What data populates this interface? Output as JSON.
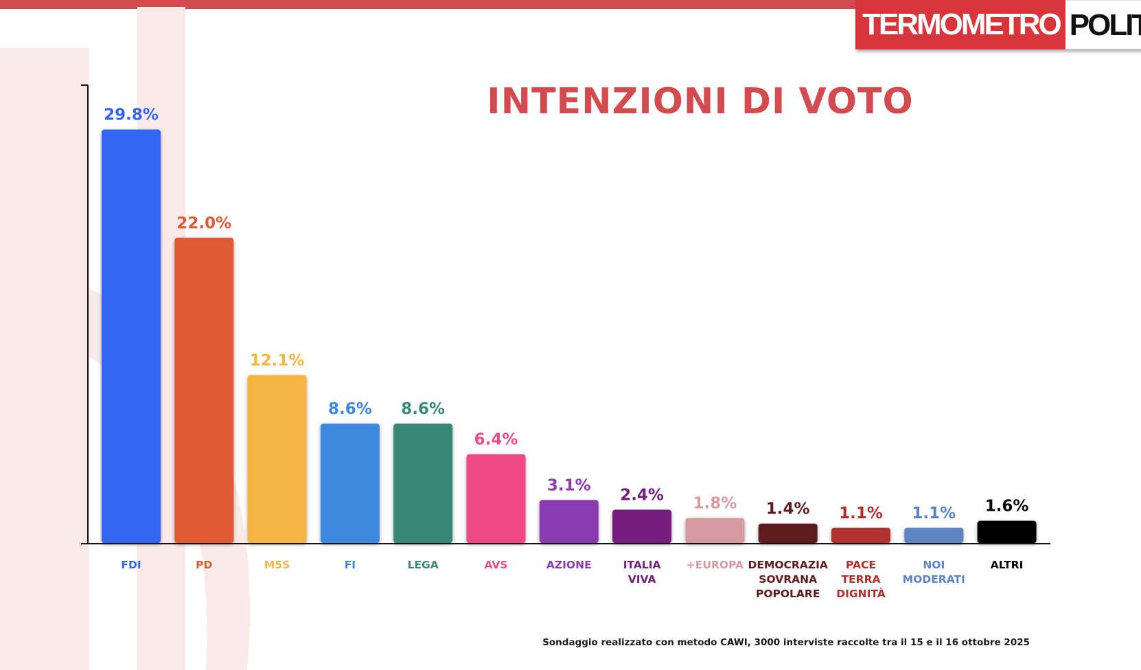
{
  "logo": {
    "part1": "TERMOMETRO",
    "part2": "POLITICO",
    "color": "#d8353b"
  },
  "chart_data": {
    "type": "bar",
    "title": "INTENZIONI DI VOTO",
    "title_color": "#d44b4f",
    "xlabel": "",
    "ylabel": "",
    "ylim": [
      0,
      33
    ],
    "grid": false,
    "categories": [
      [
        "FDI"
      ],
      [
        "PD"
      ],
      [
        "M5S"
      ],
      [
        "FI"
      ],
      [
        "LEGA"
      ],
      [
        "AVS"
      ],
      [
        "AZIONE"
      ],
      [
        "ITALIA",
        "VIVA"
      ],
      [
        "+EUROPA"
      ],
      [
        "DEMOCRAZIA",
        "SOVRANA",
        "POPOLARE"
      ],
      [
        "PACE",
        "TERRA",
        "DIGNITÀ"
      ],
      [
        "NOI",
        "MODERATI"
      ],
      [
        "ALTRI"
      ]
    ],
    "values": [
      29.8,
      22.0,
      12.1,
      8.6,
      8.6,
      6.4,
      3.1,
      2.4,
      1.8,
      1.4,
      1.1,
      1.1,
      1.6
    ],
    "value_labels": [
      "29.8%",
      "22.0%",
      "12.1%",
      "8.6%",
      "8.6%",
      "6.4%",
      "3.1%",
      "2.4%",
      "1.8%",
      "1.4%",
      "1.1%",
      "1.1%",
      "1.6%"
    ],
    "colors": [
      "#3366f0",
      "#e05a33",
      "#f5b642",
      "#3d88de",
      "#398878",
      "#ee4a85",
      "#8a3bb0",
      "#741d7e",
      "#d79aa0",
      "#5e1a1c",
      "#b1302e",
      "#5b85c2",
      "#050505"
    ]
  },
  "footnote": "Sondaggio realizzato con metodo CAWI, 3000 interviste raccolte tra il 15 e il 16 ottobre 2025"
}
